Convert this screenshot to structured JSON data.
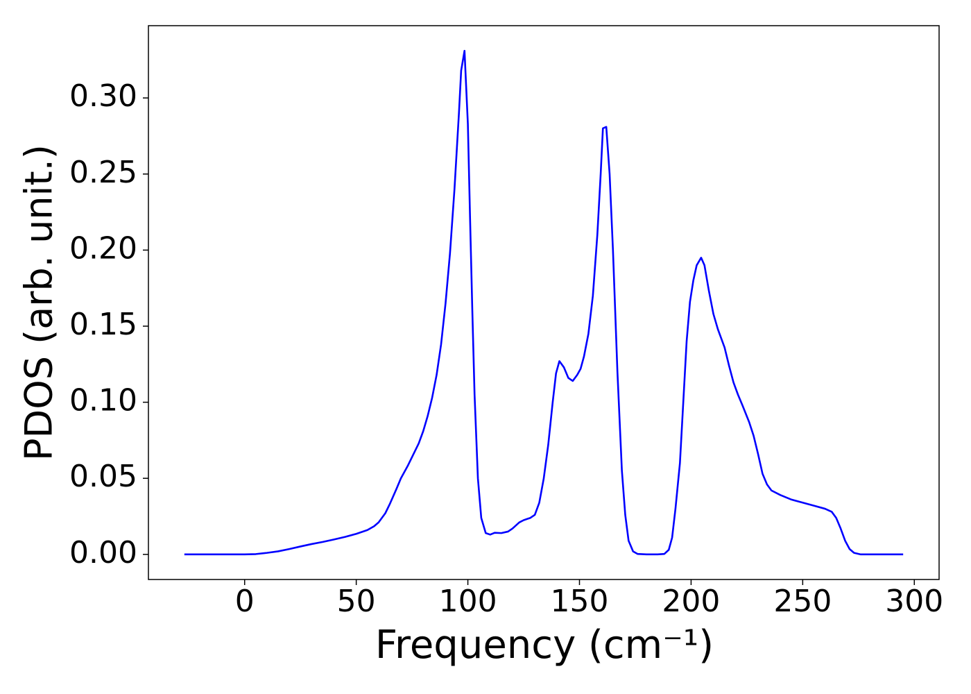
{
  "chart_data": {
    "type": "line",
    "x_label": "Frequency (cm⁻¹)",
    "y_label": "PDOS (arb. unit.)",
    "x": [
      -27,
      0,
      5,
      10,
      15,
      20,
      25,
      30,
      35,
      40,
      45,
      50,
      55,
      58,
      60,
      63,
      65,
      68,
      70,
      73,
      75,
      78,
      80,
      82,
      84,
      86,
      88,
      90,
      92,
      94,
      96,
      97,
      98.5,
      100,
      101,
      102,
      103,
      104.5,
      106,
      108,
      110,
      112,
      115,
      118,
      120,
      123,
      125,
      128,
      130,
      132,
      134,
      136,
      138,
      139.5,
      141,
      143,
      145,
      147,
      149,
      150.5,
      152,
      154,
      156,
      158,
      159.5,
      160.5,
      162,
      163.5,
      165,
      167,
      169,
      170.5,
      172,
      174,
      176,
      180,
      185,
      188,
      190,
      191.5,
      193,
      195,
      196.5,
      198,
      199.5,
      201,
      202.5,
      204.5,
      206,
      208,
      210,
      212,
      215,
      217,
      219,
      221,
      223,
      226,
      228,
      230,
      232,
      234,
      236,
      240,
      245,
      250,
      255,
      260,
      263,
      265,
      267,
      269,
      271,
      273,
      276,
      295
    ],
    "values": [
      0,
      0,
      0.0002,
      0.001,
      0.002,
      0.0035,
      0.0052,
      0.0068,
      0.0082,
      0.0098,
      0.0115,
      0.0135,
      0.016,
      0.0185,
      0.021,
      0.027,
      0.033,
      0.043,
      0.05,
      0.058,
      0.064,
      0.073,
      0.081,
      0.091,
      0.103,
      0.118,
      0.138,
      0.165,
      0.198,
      0.24,
      0.29,
      0.318,
      0.331,
      0.283,
      0.22,
      0.16,
      0.105,
      0.05,
      0.024,
      0.014,
      0.013,
      0.0142,
      0.014,
      0.015,
      0.017,
      0.021,
      0.0225,
      0.024,
      0.026,
      0.034,
      0.05,
      0.072,
      0.1,
      0.119,
      0.127,
      0.123,
      0.116,
      0.114,
      0.118,
      0.122,
      0.13,
      0.145,
      0.17,
      0.21,
      0.25,
      0.28,
      0.281,
      0.25,
      0.2,
      0.12,
      0.055,
      0.026,
      0.009,
      0.002,
      0.0003,
      0,
      0,
      0.0003,
      0.003,
      0.011,
      0.03,
      0.06,
      0.1,
      0.14,
      0.166,
      0.18,
      0.19,
      0.195,
      0.19,
      0.173,
      0.158,
      0.148,
      0.136,
      0.124,
      0.113,
      0.105,
      0.098,
      0.087,
      0.078,
      0.066,
      0.053,
      0.046,
      0.042,
      0.039,
      0.036,
      0.034,
      0.032,
      0.03,
      0.028,
      0.024,
      0.017,
      0.009,
      0.0035,
      0.001,
      0,
      0
    ],
    "color": "#0000ff",
    "xlim": [
      -43.1,
      311.1
    ],
    "ylim": [
      -0.0165,
      0.3475
    ],
    "xticks": [
      0,
      50,
      100,
      150,
      200,
      250,
      300
    ],
    "yticks": [
      {
        "value": 0,
        "label": "0.00"
      },
      {
        "value": 0.05,
        "label": "0.05"
      },
      {
        "value": 0.1,
        "label": "0.10"
      },
      {
        "value": 0.15,
        "label": "0.15"
      },
      {
        "value": 0.2,
        "label": "0.20"
      },
      {
        "value": 0.25,
        "label": "0.25"
      },
      {
        "value": 0.3,
        "label": "0.30"
      }
    ],
    "grid": false
  }
}
